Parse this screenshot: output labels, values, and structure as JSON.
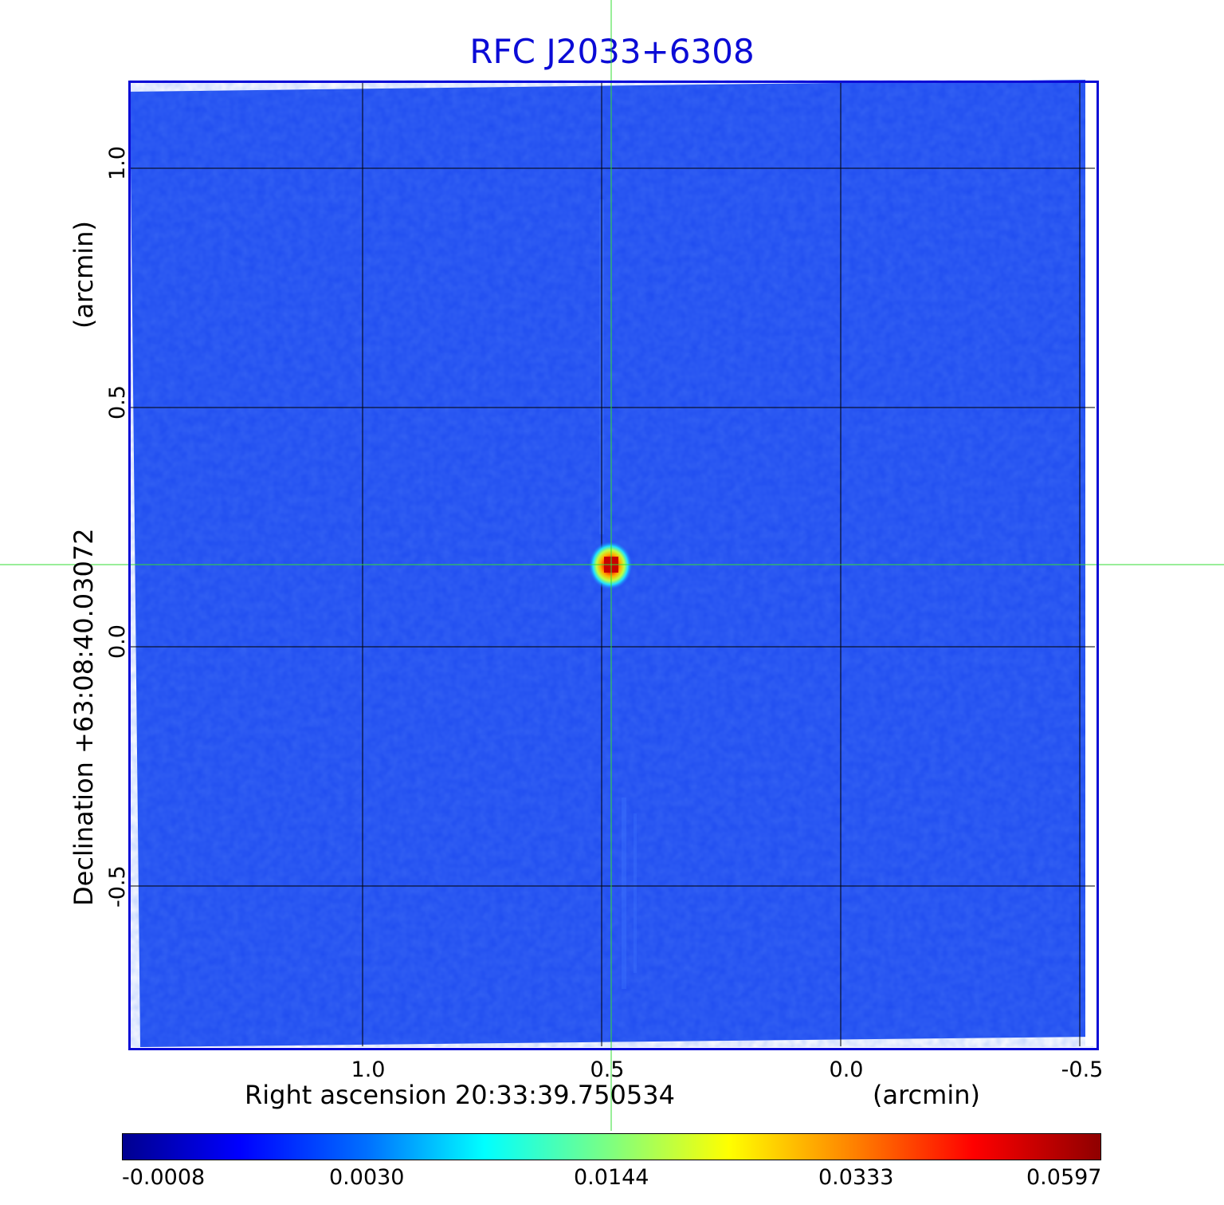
{
  "title": "RFC J2033+6308",
  "x_axis": {
    "label": "Right ascension  20:33:39.750534",
    "unit_label": "(arcmin)",
    "ticks": [
      "1.0",
      "0.5",
      "0.0",
      "-0.5"
    ]
  },
  "y_axis": {
    "label": "Declination  +63:08:40.03072",
    "unit_label": "(arcmin)",
    "ticks": [
      "1.0",
      "0.5",
      "0.0",
      "-0.5"
    ]
  },
  "colorbar": {
    "colormap": "jet",
    "ticks": [
      "-0.0008",
      "0.0030",
      "0.0144",
      "0.0333",
      "0.0597"
    ]
  },
  "colors": {
    "title": "#0b0bd6",
    "frame": "#0b0bd6",
    "background_map": "#1f4cf0",
    "grid": "#000000",
    "crosshair": "#33dd33"
  },
  "source": {
    "description_peak": "bright compact source at map center near RA offset 0.5 arcmin, Dec offset 0.17 arcmin"
  }
}
